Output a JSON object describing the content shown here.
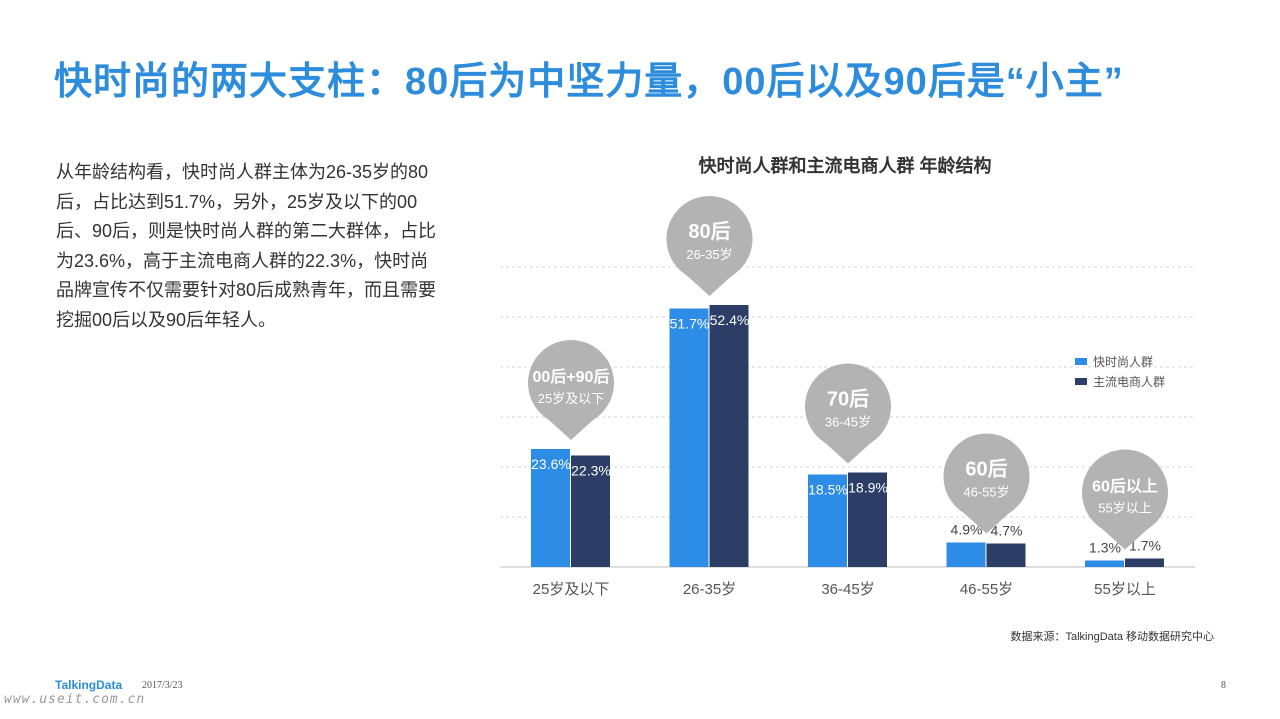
{
  "title": "快时尚的两大支柱：80后为中坚力量，00后以及90后是“小主”",
  "body_text": "从年龄结构看，快时尚人群主体为26-35岁的80后，占比达到51.7%，另外，25岁及以下的00后、90后，则是快时尚人群的第二大群体，占比为23.6%，高于主流电商人群的22.3%，快时尚品牌宣传不仅需要针对80后成熟青年，而且需要挖掘00后以及90后年轻人。",
  "source": "数据来源：TalkingData 移动数据研究中心",
  "footer": {
    "logo": "TalkingData",
    "date": "2017/3/23",
    "page": "8",
    "watermark": "www.useit.com.cn"
  },
  "colors": {
    "title": "#2d8cdc",
    "series1": "#2d8ce6",
    "series2": "#2c3e66",
    "bubble": "#b3b3b3"
  },
  "chart_data": {
    "type": "bar",
    "title": "快时尚人群和主流电商人群  年龄结构",
    "categories": [
      "25岁及以下",
      "26-35岁",
      "36-45岁",
      "46-55岁",
      "55岁以上"
    ],
    "series": [
      {
        "name": "快时尚人群",
        "values": [
          23.6,
          51.7,
          18.5,
          4.9,
          1.3
        ],
        "labels": [
          "23.6%",
          "51.7%",
          "18.5%",
          "4.9%",
          "1.3%"
        ]
      },
      {
        "name": "主流电商人群",
        "values": [
          22.3,
          52.4,
          18.9,
          4.7,
          1.7
        ],
        "labels": [
          "22.3%",
          "52.4%",
          "18.9%",
          "4.7%",
          "1.7%"
        ]
      }
    ],
    "annotations": [
      {
        "main": "00后+90后",
        "sub": "25岁及以下"
      },
      {
        "main": "80后",
        "sub": "26-35岁"
      },
      {
        "main": "70后",
        "sub": "36-45岁"
      },
      {
        "main": "60后",
        "sub": "46-55岁"
      },
      {
        "main": "60后以上",
        "sub": "55岁以上"
      }
    ],
    "ylim": [
      0,
      60
    ],
    "grid": true,
    "legend_position": "right"
  }
}
